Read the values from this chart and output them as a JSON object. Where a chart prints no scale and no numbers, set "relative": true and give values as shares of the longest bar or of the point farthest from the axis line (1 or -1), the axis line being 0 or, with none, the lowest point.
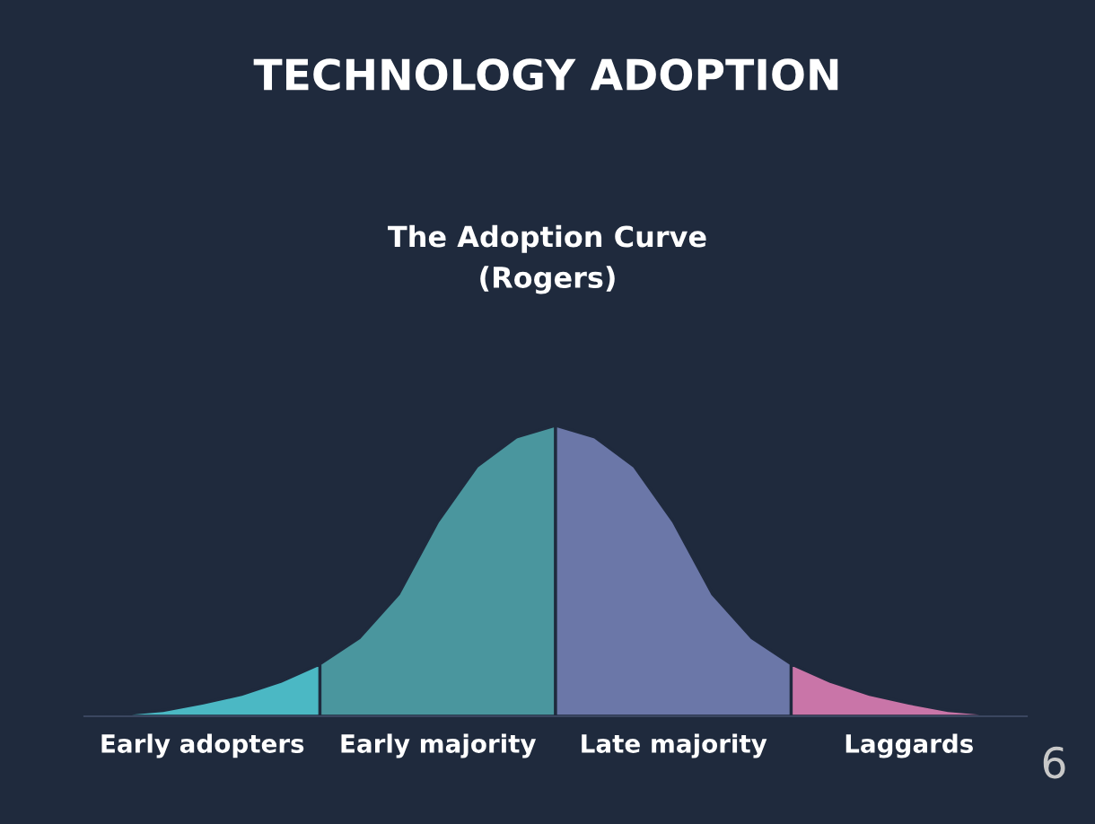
{
  "chart_data": {
    "type": "area",
    "relative": true,
    "title": "TECHNOLOGY ADOPTION",
    "subtitle": "The Adoption Curve\n(Rogers)",
    "categories": [
      null,
      null,
      null,
      null,
      null,
      null,
      null,
      null,
      null,
      null,
      null,
      null,
      null,
      null,
      null,
      null,
      null,
      null,
      null,
      null,
      null,
      null,
      null,
      null,
      null
    ],
    "series": [
      {
        "name": "Early adopters",
        "color": "#4bb8c4",
        "values": [
          0,
          0.008,
          0.02,
          0.045,
          0.075,
          0.12,
          0.18,
          null,
          null,
          null,
          null,
          null,
          null,
          null,
          null,
          null,
          null,
          null,
          null,
          null,
          null,
          null,
          null,
          null,
          null
        ]
      },
      {
        "name": "Early majority",
        "color": "#4a969e",
        "values": [
          null,
          null,
          null,
          null,
          null,
          null,
          0.18,
          0.27,
          0.42,
          0.67,
          0.86,
          0.96,
          1.0,
          null,
          null,
          null,
          null,
          null,
          null,
          null,
          null,
          null,
          null,
          null,
          null
        ]
      },
      {
        "name": "Late majority",
        "color": "#6b77a8",
        "values": [
          null,
          null,
          null,
          null,
          null,
          null,
          null,
          null,
          null,
          null,
          null,
          null,
          1.0,
          0.96,
          0.86,
          0.67,
          0.42,
          0.27,
          0.18,
          null,
          null,
          null,
          null,
          null,
          null
        ]
      },
      {
        "name": "Laggards",
        "color": "#c975a8",
        "values": [
          null,
          null,
          null,
          null,
          null,
          null,
          null,
          null,
          null,
          null,
          null,
          null,
          null,
          null,
          null,
          null,
          null,
          null,
          0.18,
          0.12,
          0.075,
          0.045,
          0.02,
          0.008,
          0
        ]
      }
    ],
    "annotations": [
      "6"
    ],
    "legend": false
  }
}
